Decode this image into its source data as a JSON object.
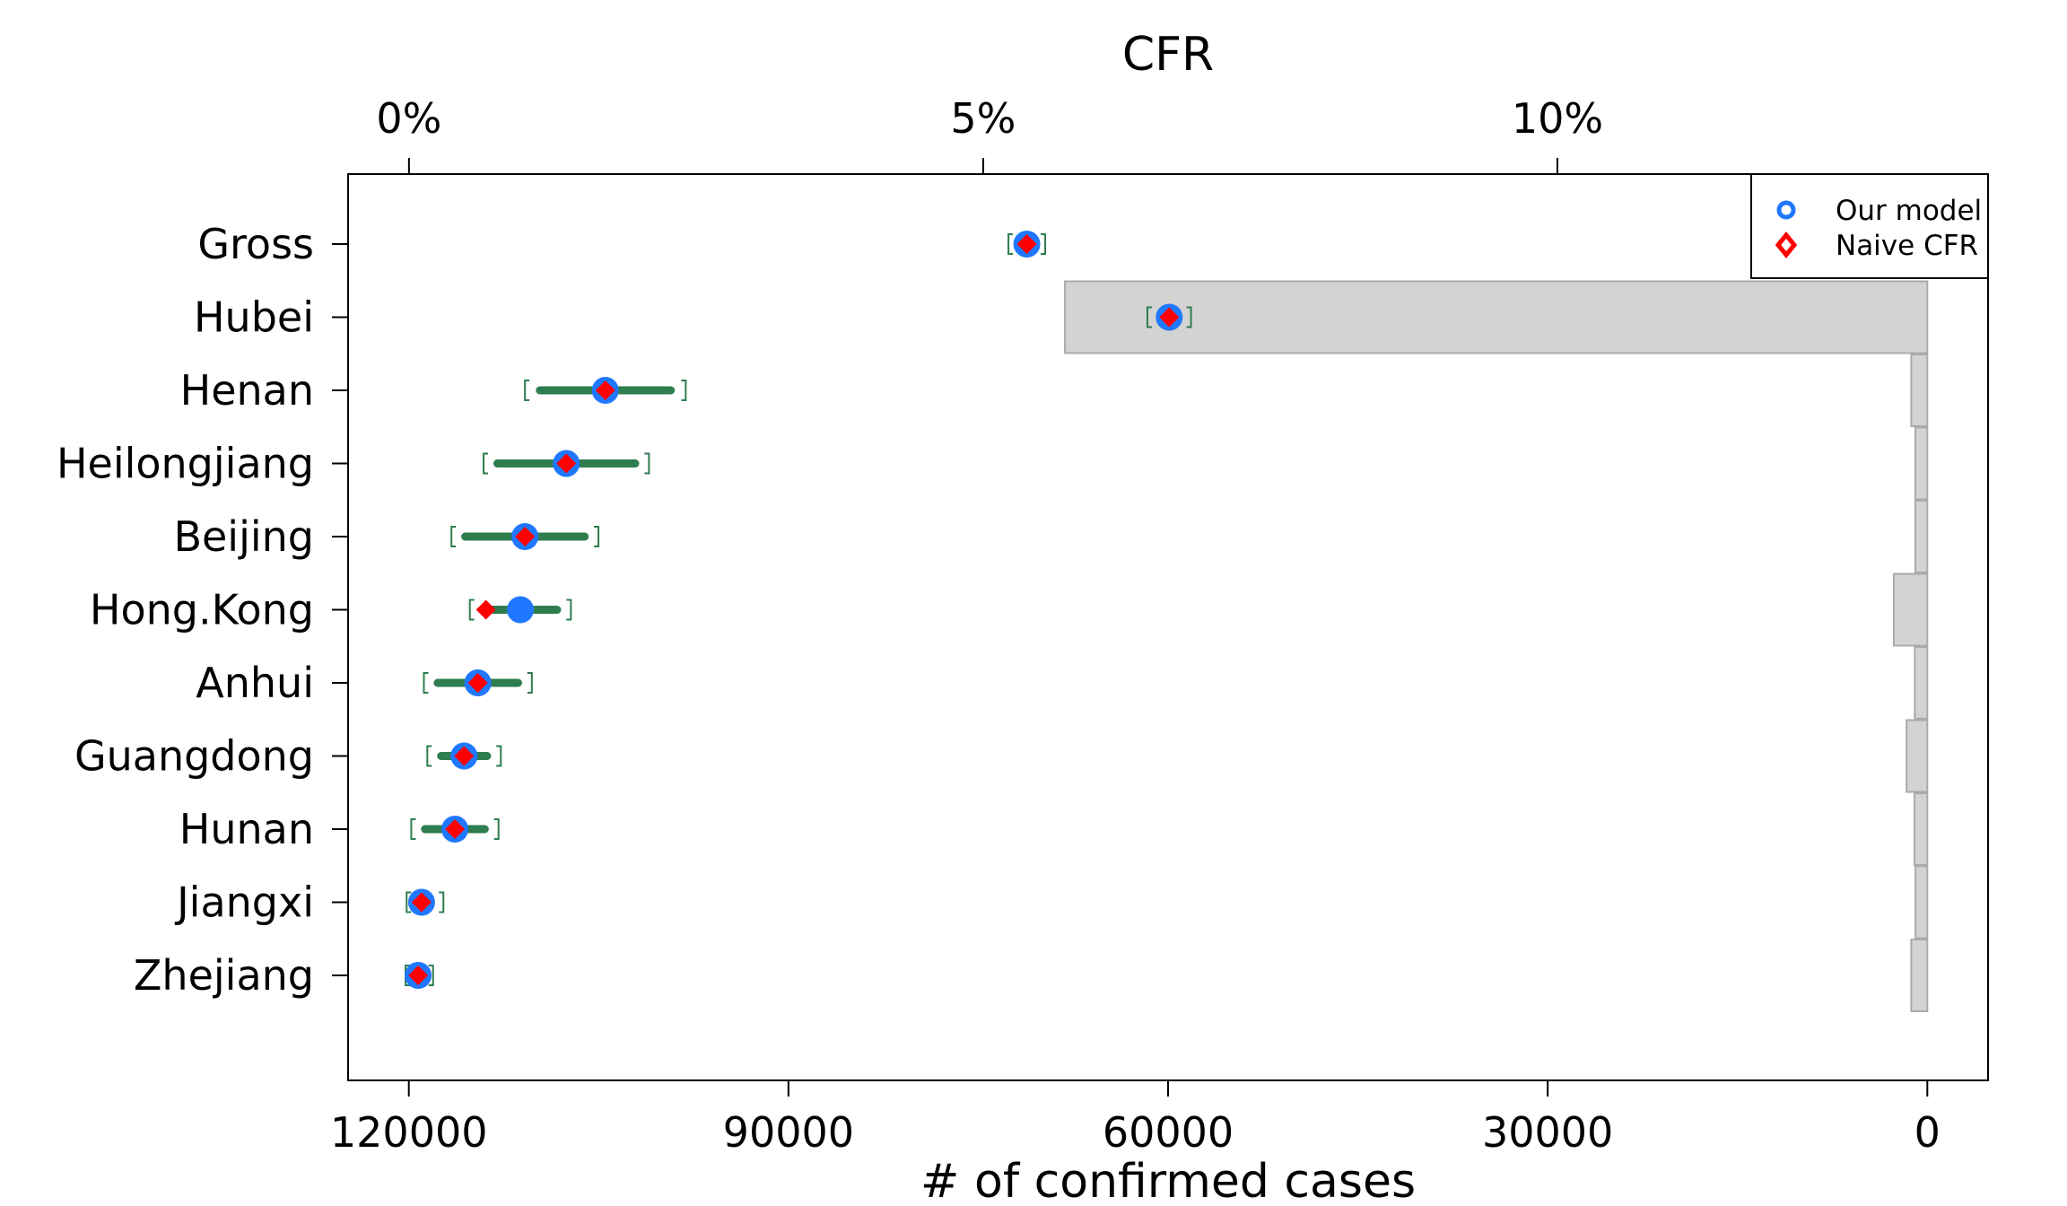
{
  "chart_data": {
    "type": "dot-interval-with-bars",
    "top_axis": {
      "title": "CFR",
      "tick_values": [
        0,
        5,
        10
      ],
      "tick_labels": [
        "0%",
        "5%",
        "10%"
      ],
      "range_percent": [
        -0.53,
        13.75
      ]
    },
    "bottom_axis": {
      "title": "# of confirmed cases",
      "tick_values": [
        120000,
        90000,
        60000,
        30000,
        0
      ],
      "tick_labels": [
        "120000",
        "90000",
        "60000",
        "30000",
        "0"
      ],
      "range_cases": [
        124800,
        -4800
      ],
      "reversed": true
    },
    "legend": {
      "position": "top-right",
      "entries": [
        {
          "label": "Our model",
          "marker": "circle",
          "color": "#1f78ff"
        },
        {
          "label": "Naive CFR",
          "marker": "diamond",
          "color": "#ff0000"
        }
      ]
    },
    "colors": {
      "model": "#1f78ff",
      "naive": "#ff0000",
      "interval": "#2e7d4f",
      "bar_fill": "#d3d3d3",
      "bar_stroke": "#aaaaaa"
    },
    "regions": [
      {
        "name": "Gross",
        "model_cfr": 5.38,
        "naive_cfr": 5.38,
        "ci_low": 5.33,
        "ci_high": 5.43,
        "bracket_low": 5.22,
        "bracket_high": 5.54,
        "confirmed_cases": null
      },
      {
        "name": "Hubei",
        "model_cfr": 6.62,
        "naive_cfr": 6.62,
        "ci_low": 6.54,
        "ci_high": 6.7,
        "bracket_low": 6.43,
        "bracket_high": 6.81,
        "confirmed_cases": 68150
      },
      {
        "name": "Henan",
        "model_cfr": 1.71,
        "naive_cfr": 1.71,
        "ci_low": 1.14,
        "ci_high": 2.28,
        "bracket_low": 1.01,
        "bracket_high": 2.41,
        "confirmed_cases": 1270
      },
      {
        "name": "Heilongjiang",
        "model_cfr": 1.37,
        "naive_cfr": 1.37,
        "ci_low": 0.77,
        "ci_high": 1.97,
        "bracket_low": 0.65,
        "bracket_high": 2.09,
        "confirmed_cases": 950
      },
      {
        "name": "Beijing",
        "model_cfr": 1.01,
        "naive_cfr": 1.01,
        "ci_low": 0.49,
        "ci_high": 1.53,
        "bracket_low": 0.37,
        "bracket_high": 1.65,
        "confirmed_cases": 950
      },
      {
        "name": "Hong.Kong",
        "model_cfr": 0.97,
        "naive_cfr": 0.67,
        "ci_low": 0.65,
        "ci_high": 1.29,
        "bracket_low": 0.53,
        "bracket_high": 1.41,
        "confirmed_cases": 2650
      },
      {
        "name": "Anhui",
        "model_cfr": 0.6,
        "naive_cfr": 0.6,
        "ci_low": 0.25,
        "ci_high": 0.95,
        "bracket_low": 0.13,
        "bracket_high": 1.07,
        "confirmed_cases": 990
      },
      {
        "name": "Guangdong",
        "model_cfr": 0.48,
        "naive_cfr": 0.48,
        "ci_low": 0.28,
        "ci_high": 0.68,
        "bracket_low": 0.16,
        "bracket_high": 0.8,
        "confirmed_cases": 1640
      },
      {
        "name": "Hunan",
        "model_cfr": 0.4,
        "naive_cfr": 0.4,
        "ci_low": 0.14,
        "ci_high": 0.66,
        "bracket_low": 0.02,
        "bracket_high": 0.78,
        "confirmed_cases": 1020
      },
      {
        "name": "Jiangxi",
        "model_cfr": 0.11,
        "naive_cfr": 0.11,
        "ci_low": 0.04,
        "ci_high": 0.18,
        "bracket_low": -0.02,
        "bracket_high": 0.3,
        "confirmed_cases": 935
      },
      {
        "name": "Zhejiang",
        "model_cfr": 0.08,
        "naive_cfr": 0.08,
        "ci_low": 0.04,
        "ci_high": 0.14,
        "bracket_low": -0.03,
        "bracket_high": 0.21,
        "confirmed_cases": 1270
      }
    ]
  }
}
